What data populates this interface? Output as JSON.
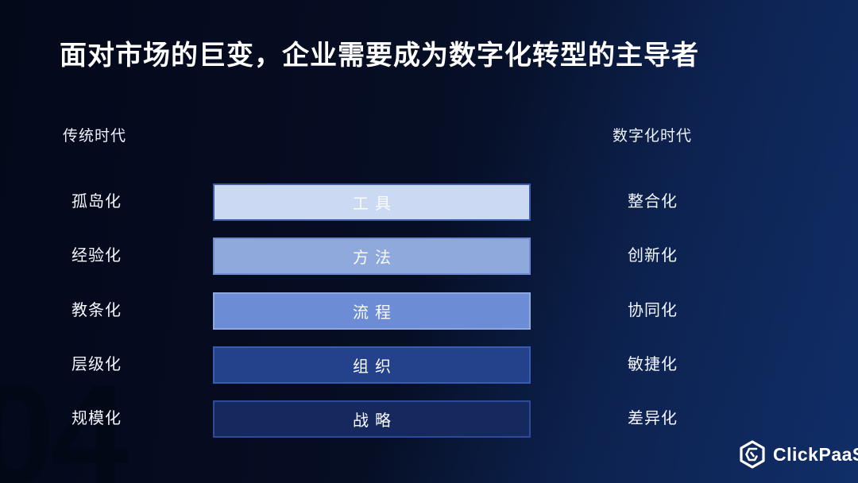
{
  "slide": {
    "title": "面对市场的巨变，企业需要成为数字化转型的主导者",
    "left_era_label": "传统时代",
    "right_era_label": "数字化时代",
    "page_number": "04"
  },
  "rows": [
    {
      "left": "孤岛化",
      "bar": "工具",
      "right": "整合化",
      "fill": "#ccd9f2",
      "border": "#3f5ea9"
    },
    {
      "left": "经验化",
      "bar": "方法",
      "right": "创新化",
      "fill": "#8fa9dd",
      "border": "#6f8bce"
    },
    {
      "left": "教条化",
      "bar": "流程",
      "right": "协同化",
      "fill": "#6c8cd5",
      "border": "#8fa8e0"
    },
    {
      "left": "层级化",
      "bar": "组织",
      "right": "敏捷化",
      "fill": "#24418c",
      "border": "#3a5cb0"
    },
    {
      "left": "规模化",
      "bar": "战略",
      "right": "差异化",
      "fill": "#16295f",
      "border": "#2c4a95"
    }
  ],
  "logo": {
    "brand": "ClickPaaS",
    "icon": "hexagon-spiral-icon"
  },
  "colors": {
    "background_left": "#04091a",
    "background_right": "#0d2454",
    "text": "#ffffff"
  }
}
